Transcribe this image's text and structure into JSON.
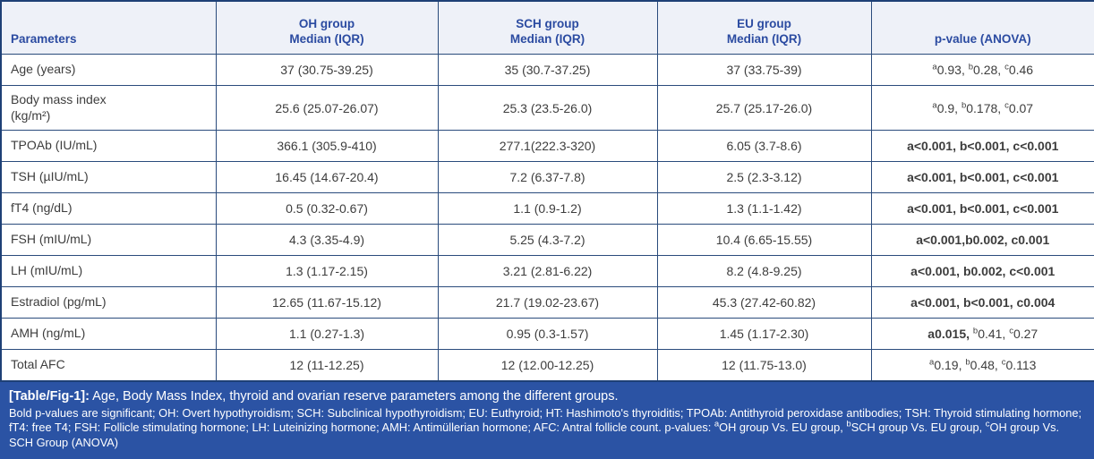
{
  "colors": {
    "header_text": "#2b4ba1",
    "header_bg": "#eef1f8",
    "grid_border": "#2a4b7c",
    "outer_border": "#1e4076",
    "body_text": "#3d3d3d",
    "footer_bg": "#2b53a4",
    "footer_text": "#ffffff"
  },
  "table": {
    "headers": [
      {
        "key": "parameters",
        "lines": [
          "Parameters"
        ],
        "align": "left"
      },
      {
        "key": "oh-group",
        "lines": [
          "OH group",
          "Median (IQR)"
        ]
      },
      {
        "key": "sch-group",
        "lines": [
          "SCH group",
          "Median (IQR)"
        ]
      },
      {
        "key": "eu-group",
        "lines": [
          "EU group",
          "Median (IQR)"
        ]
      },
      {
        "key": "p-value-anova",
        "lines": [
          "p-value (ANOVA)"
        ]
      }
    ],
    "rows": [
      {
        "key": "age",
        "param": [
          "Age (years)"
        ],
        "oh": "37 (30.75-39.25)",
        "sch": "35 (30.7-37.25)",
        "eu": "37 (33.75-39)",
        "pval": [
          {
            "text": "a",
            "sup": true
          },
          {
            "text": "0.93, "
          },
          {
            "text": "b",
            "sup": true
          },
          {
            "text": "0.28, "
          },
          {
            "text": "c",
            "sup": true
          },
          {
            "text": "0.46"
          }
        ]
      },
      {
        "key": "bmi",
        "tall": true,
        "param": [
          "Body mass index",
          "(kg/m²)"
        ],
        "oh": "25.6 (25.07-26.07)",
        "sch": "25.3 (23.5-26.0)",
        "eu": "25.7 (25.17-26.0)",
        "pval": [
          {
            "text": "a",
            "sup": true
          },
          {
            "text": "0.9, "
          },
          {
            "text": "b",
            "sup": true
          },
          {
            "text": "0.178, "
          },
          {
            "text": "c",
            "sup": true
          },
          {
            "text": "0.07"
          }
        ]
      },
      {
        "key": "tpoab",
        "param": [
          "TPOAb (IU/mL)"
        ],
        "oh": "366.1 (305.9-410)",
        "sch": "277.1(222.3-320)",
        "eu": "6.05 (3.7-8.6)",
        "pval": [
          {
            "text": "a<0.001, b<0.001, c<0.001",
            "bold": true
          }
        ]
      },
      {
        "key": "tsh",
        "param": [
          "TSH (µIU/mL)"
        ],
        "oh": "16.45 (14.67-20.4)",
        "sch": "7.2 (6.37-7.8)",
        "eu": "2.5 (2.3-3.12)",
        "pval": [
          {
            "text": "a<0.001, b<0.001, c<0.001",
            "bold": true
          }
        ]
      },
      {
        "key": "ft4",
        "param": [
          "fT4 (ng/dL)"
        ],
        "oh": "0.5 (0.32-0.67)",
        "sch": "1.1 (0.9-1.2)",
        "eu": "1.3 (1.1-1.42)",
        "pval": [
          {
            "text": "a<0.001, b<0.001, c<0.001",
            "bold": true
          }
        ]
      },
      {
        "key": "fsh",
        "param": [
          "FSH (mIU/mL)"
        ],
        "oh": "4.3 (3.35-4.9)",
        "sch": "5.25 (4.3-7.2)",
        "eu": "10.4 (6.65-15.55)",
        "pval": [
          {
            "text": "a<0.001,b0.002, c0.001",
            "bold": true
          }
        ]
      },
      {
        "key": "lh",
        "param": [
          "LH (mIU/mL)"
        ],
        "oh": "1.3 (1.17-2.15)",
        "sch": "3.21 (2.81-6.22)",
        "eu": "8.2 (4.8-9.25)",
        "pval": [
          {
            "text": "a<0.001, b0.002, c<0.001",
            "bold": true
          }
        ]
      },
      {
        "key": "estradiol",
        "param": [
          "Estradiol (pg/mL)"
        ],
        "oh": "12.65 (11.67-15.12)",
        "sch": "21.7 (19.02-23.67)",
        "eu": "45.3 (27.42-60.82)",
        "pval": [
          {
            "text": "a<0.001, b<0.001, c0.004",
            "bold": true
          }
        ]
      },
      {
        "key": "amh",
        "param": [
          "AMH (ng/mL)"
        ],
        "oh": "1.1 (0.27-1.3)",
        "sch": "0.95 (0.3-1.57)",
        "eu": "1.45 (1.17-2.30)",
        "pval": [
          {
            "text": "a0.015, ",
            "bold": true
          },
          {
            "text": "b",
            "sup": true
          },
          {
            "text": "0.41, "
          },
          {
            "text": "c",
            "sup": true
          },
          {
            "text": "0.27"
          }
        ]
      },
      {
        "key": "total-afc",
        "param": [
          "Total AFC"
        ],
        "oh": "12 (11-12.25)",
        "sch": "12 (12.00-12.25)",
        "eu": "12 (11.75-13.0)",
        "pval": [
          {
            "text": "a",
            "sup": true
          },
          {
            "text": "0.19, "
          },
          {
            "text": "b",
            "sup": true
          },
          {
            "text": "0.48, "
          },
          {
            "text": "c",
            "sup": true
          },
          {
            "text": "0.113"
          }
        ]
      }
    ]
  },
  "footer": {
    "label": "[Table/Fig-1]:",
    "title": " Age, Body Mass Index, thyroid and ovarian reserve parameters among the different groups.",
    "notes": [
      {
        "text": "Bold p-values are significant; OH: Overt hypothyroidism; SCH: Subclinical hypothyroidism; EU: Euthyroid; HT: Hashimoto's thyroiditis; TPOAb: Antithyroid peroxidase antibodies; TSH: Thyroid stimulating hormone; fT4: free T4; FSH: Follicle stimulating hormone; LH: Luteinizing hormone; AMH: Antimüllerian hormone; AFC: Antral follicle count. p-values: "
      },
      {
        "text": "a",
        "sup": true,
        "bold": true
      },
      {
        "text": "OH group Vs. EU group, "
      },
      {
        "text": "b",
        "sup": true,
        "bold": true
      },
      {
        "text": "SCH group Vs. EU group, "
      },
      {
        "text": "c",
        "sup": true,
        "bold": true
      },
      {
        "text": "OH group Vs. SCH Group (ANOVA)"
      }
    ]
  }
}
